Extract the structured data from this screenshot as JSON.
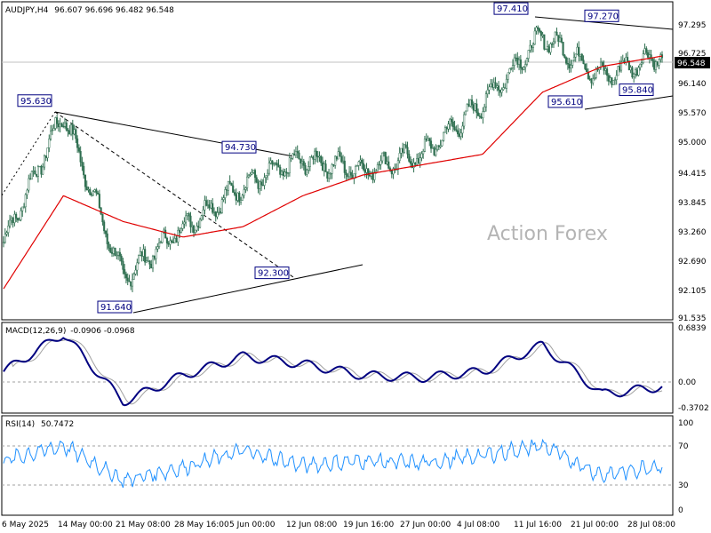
{
  "price_panel": {
    "title": "AUDJPY,H4",
    "ohlc": "96.607 96.696 96.482 96.548",
    "last_price": "96.548",
    "y_ticks": [
      "97.295",
      "96.725",
      "96.140",
      "95.570",
      "95.000",
      "94.415",
      "93.845",
      "93.260",
      "92.690",
      "92.105",
      "91.535"
    ],
    "annotations": [
      {
        "text": "95.630",
        "value": 95.63
      },
      {
        "text": "94.730",
        "value": 94.73
      },
      {
        "text": "92.300",
        "value": 92.3
      },
      {
        "text": "91.640",
        "value": 91.64
      },
      {
        "text": "97.410",
        "value": 97.41
      },
      {
        "text": "97.270",
        "value": 97.27
      },
      {
        "text": "95.610",
        "value": 95.61
      },
      {
        "text": "95.840",
        "value": 95.84
      }
    ],
    "watermark": "Action Forex"
  },
  "macd_panel": {
    "title": "MACD(12,26,9)",
    "values": "-0.0906 -0.0968",
    "y_ticks": [
      "0.6839",
      "0.00",
      "-0.3702"
    ]
  },
  "rsi_panel": {
    "title": "RSI(14)",
    "value": "50.7472",
    "y_ticks": [
      "100",
      "70",
      "30",
      "0"
    ]
  },
  "x_ticks": [
    "6 May 2025",
    "14 May 00:00",
    "21 May 08:00",
    "28 May 16:00",
    "5 Jun 00:00",
    "12 Jun 08:00",
    "19 Jun 16:00",
    "27 Jun 00:00",
    "4 Jul 08:00",
    "11 Jul 16:00",
    "21 Jul 00:00",
    "28 Jul 08:00"
  ],
  "colors": {
    "candle": "#2f6f50",
    "ma": "#e00000",
    "macd_line": "#000080",
    "macd_signal": "#a0a0a0",
    "rsi_line": "#1e90ff",
    "label": "#000080"
  },
  "chart_data": {
    "type": "line",
    "title": "AUDJPY,H4",
    "x": [
      "6 May 2025",
      "14 May 00:00",
      "21 May 08:00",
      "28 May 16:00",
      "5 Jun 00:00",
      "12 Jun 08:00",
      "19 Jun 16:00",
      "27 Jun 00:00",
      "4 Jul 08:00",
      "11 Jul 16:00",
      "21 Jul 00:00",
      "28 Jul 08:00"
    ],
    "ylim": [
      91.4,
      97.55
    ],
    "series": [
      {
        "name": "close",
        "values": [
          92.9,
          95.4,
          92.2,
          93.2,
          94.0,
          94.5,
          94.3,
          94.6,
          95.6,
          96.9,
          96.1,
          96.55
        ]
      },
      {
        "name": "moving average",
        "values": [
          92.0,
          93.8,
          93.3,
          93.0,
          93.2,
          93.8,
          94.2,
          94.4,
          94.6,
          95.8,
          96.3,
          96.5
        ]
      }
    ],
    "annotations": [
      {
        "text": "95.630",
        "value": 95.63
      },
      {
        "text": "94.730",
        "value": 94.73
      },
      {
        "text": "92.300",
        "value": 92.3
      },
      {
        "text": "91.640",
        "value": 91.64
      },
      {
        "text": "97.410",
        "value": 97.41
      },
      {
        "text": "97.270",
        "value": 97.27
      },
      {
        "text": "95.610",
        "value": 95.61
      },
      {
        "text": "95.840",
        "value": 95.84
      }
    ],
    "macd": {
      "ylim": [
        -0.45,
        0.75
      ],
      "series": [
        {
          "name": "MACD(12,26,9)",
          "values": [
            0.1,
            0.6,
            -0.3,
            0.05,
            0.3,
            0.2,
            0.05,
            0.02,
            0.1,
            0.45,
            -0.2,
            -0.1
          ]
        }
      ]
    },
    "rsi": {
      "ylim": [
        0,
        100
      ],
      "series": [
        {
          "name": "RSI(14)",
          "values": [
            55,
            70,
            35,
            48,
            65,
            50,
            55,
            52,
            60,
            70,
            40,
            50.7
          ]
        }
      ]
    }
  }
}
